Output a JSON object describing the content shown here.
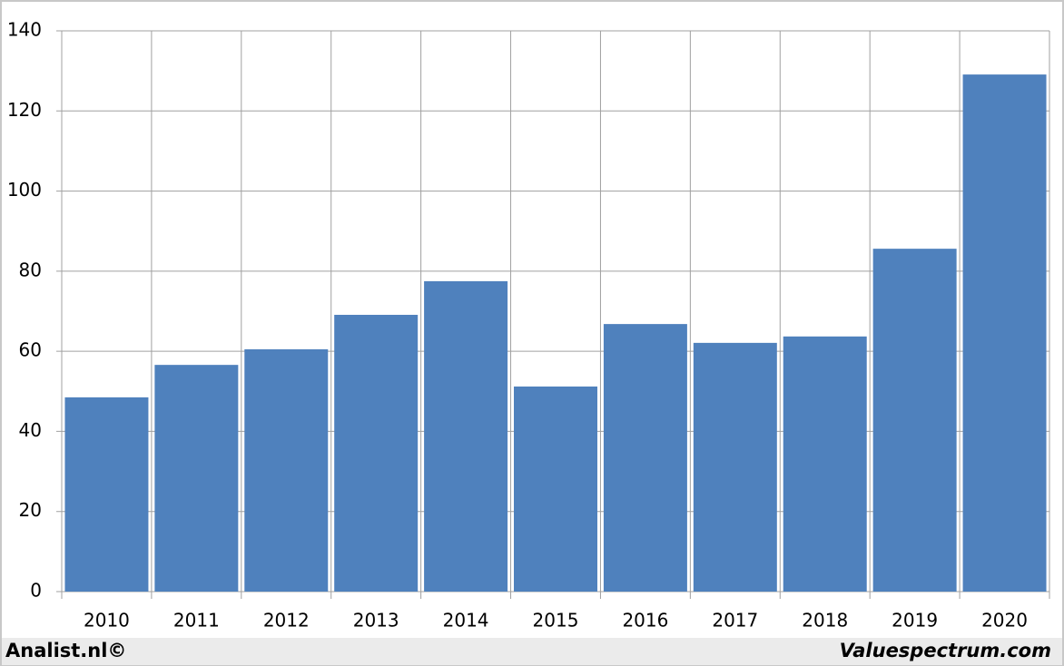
{
  "chart_data": {
    "type": "bar",
    "categories": [
      "2010",
      "2011",
      "2012",
      "2013",
      "2014",
      "2015",
      "2016",
      "2017",
      "2018",
      "2019",
      "2020"
    ],
    "values": [
      48.5,
      56.6,
      60.5,
      69.1,
      77.5,
      51.2,
      66.8,
      62.1,
      63.7,
      85.6,
      129.1
    ],
    "color": "#4f81bd",
    "ylim": [
      0,
      140
    ],
    "yticks": [
      0,
      20,
      40,
      60,
      80,
      100,
      120,
      140
    ],
    "grid": true
  },
  "footer": {
    "left": "Analist.nl©",
    "right": "Valuespectrum.com"
  }
}
